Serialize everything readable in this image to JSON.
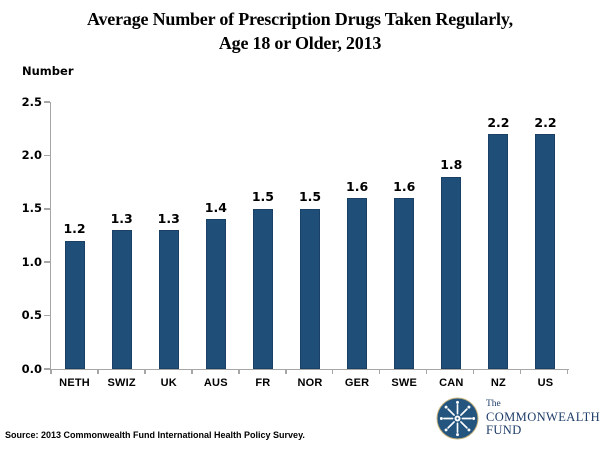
{
  "title": "Average Number of Prescription Drugs Taken Regularly,\nAge 18 or Older, 2013",
  "ylabel": "Number",
  "source": "Source: 2013 Commonwealth Fund International Health Policy Survey.",
  "logo": {
    "line1": "The",
    "line2": "COMMONWEALTH",
    "line3": "FUND"
  },
  "colors": {
    "bar": "#1F4E79",
    "bar_border": "#1A4066",
    "axis": "#A6A6A6",
    "logo_navy": "#1E3C68",
    "text": "#000000"
  },
  "chart_data": {
    "type": "bar",
    "categories": [
      "NETH",
      "SWIZ",
      "UK",
      "AUS",
      "FR",
      "NOR",
      "GER",
      "SWE",
      "CAN",
      "NZ",
      "US"
    ],
    "values": [
      1.2,
      1.3,
      1.3,
      1.4,
      1.5,
      1.5,
      1.6,
      1.6,
      1.8,
      2.2,
      2.2
    ],
    "title": "Average Number of Prescription Drugs Taken Regularly, Age 18 or Older, 2013",
    "xlabel": "",
    "ylabel": "Number",
    "ylim": [
      0,
      2.5
    ],
    "yticks": [
      0.0,
      0.5,
      1.0,
      1.5,
      2.0,
      2.5
    ],
    "grid": false,
    "data_labels": true,
    "legend": false,
    "bar_color": "#1F4E79"
  }
}
